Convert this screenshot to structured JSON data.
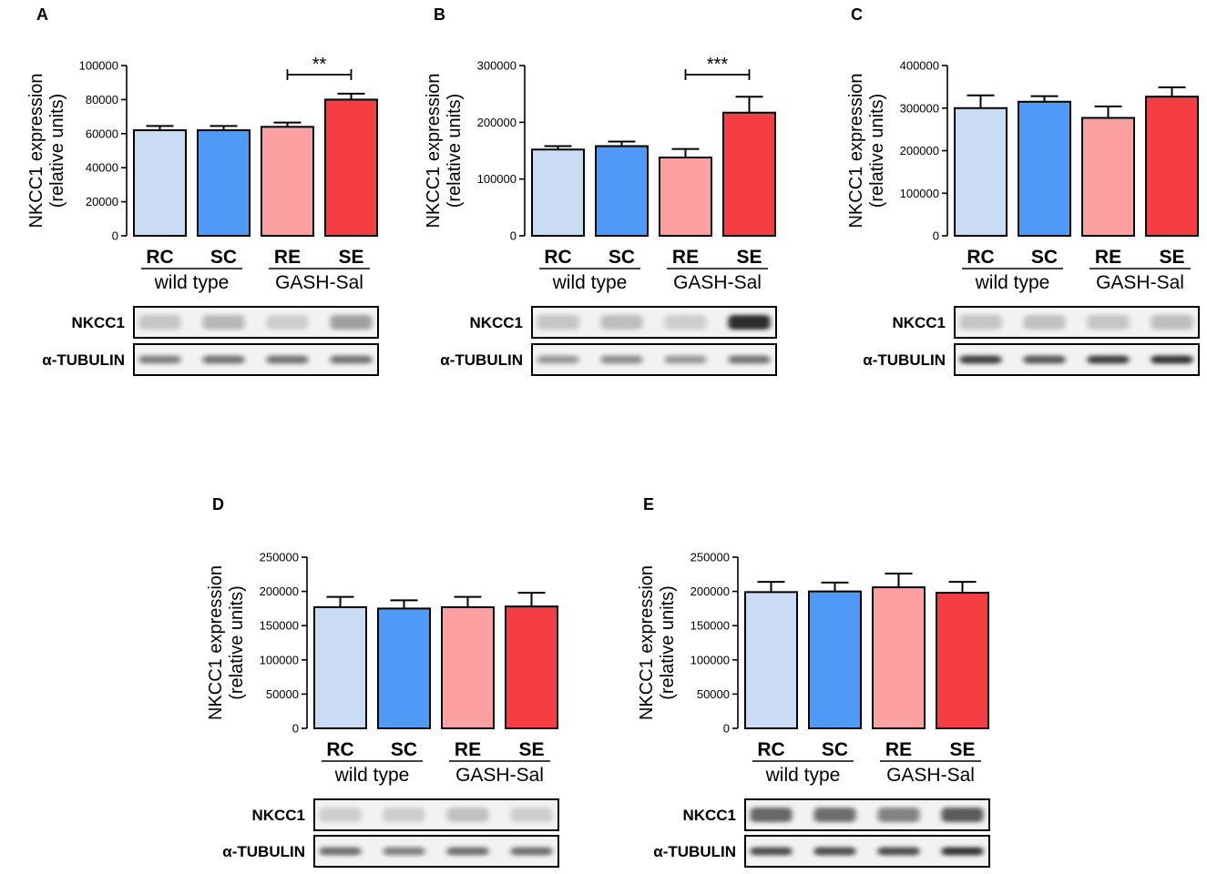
{
  "ylabel_line1": "NKCC1 expression",
  "ylabel_line2": "(relative units)",
  "categories": [
    "RC",
    "SC",
    "RE",
    "SE"
  ],
  "groups": [
    "wild type",
    "GASH-Sal"
  ],
  "bar_colors": [
    "#c9dcf4",
    "#4f9af6",
    "#fda0a2",
    "#f43e43"
  ],
  "blot_labels": [
    "NKCC1",
    "α-TUBULIN"
  ],
  "chart_data": [
    {
      "type": "bar",
      "panel": "A",
      "categories": [
        "RC",
        "SC",
        "RE",
        "SE"
      ],
      "values": [
        62000,
        62000,
        64000,
        80000
      ],
      "errors": [
        2500,
        2500,
        2500,
        3500
      ],
      "ylim": [
        0,
        100000
      ],
      "yticks": [
        0,
        20000,
        40000,
        60000,
        80000,
        100000
      ],
      "significance": {
        "from": "RE",
        "to": "SE",
        "label": "**"
      },
      "blot_intensity": {
        "nkcc1": [
          0.22,
          0.28,
          0.15,
          0.38
        ],
        "tubulin": [
          0.5,
          0.55,
          0.55,
          0.55
        ]
      }
    },
    {
      "type": "bar",
      "panel": "B",
      "categories": [
        "RC",
        "SC",
        "RE",
        "SE"
      ],
      "values": [
        152000,
        158000,
        138000,
        217000
      ],
      "errors": [
        6000,
        8000,
        15000,
        28000
      ],
      "ylim": [
        0,
        300000
      ],
      "yticks": [
        0,
        100000,
        200000,
        300000
      ],
      "significance": {
        "from": "RE",
        "to": "SE",
        "label": "***"
      },
      "blot_intensity": {
        "nkcc1": [
          0.22,
          0.25,
          0.18,
          0.9
        ],
        "tubulin": [
          0.4,
          0.45,
          0.4,
          0.55
        ]
      }
    },
    {
      "type": "bar",
      "panel": "C",
      "categories": [
        "RC",
        "SC",
        "RE",
        "SE"
      ],
      "values": [
        300000,
        315000,
        277000,
        327000
      ],
      "errors": [
        30000,
        13000,
        27000,
        22000
      ],
      "ylim": [
        0,
        400000
      ],
      "yticks": [
        0,
        100000,
        200000,
        300000,
        400000
      ],
      "significance": null,
      "blot_intensity": {
        "nkcc1": [
          0.22,
          0.2,
          0.22,
          0.25
        ],
        "tubulin": [
          0.8,
          0.7,
          0.8,
          0.85
        ]
      }
    },
    {
      "type": "bar",
      "panel": "D",
      "categories": [
        "RC",
        "SC",
        "RE",
        "SE"
      ],
      "values": [
        177000,
        175000,
        177000,
        178000
      ],
      "errors": [
        15000,
        12000,
        15000,
        20000
      ],
      "ylim": [
        0,
        250000
      ],
      "yticks": [
        0,
        50000,
        100000,
        150000,
        200000,
        250000
      ],
      "significance": null,
      "blot_intensity": {
        "nkcc1": [
          0.15,
          0.15,
          0.2,
          0.15
        ],
        "tubulin": [
          0.6,
          0.5,
          0.6,
          0.6
        ]
      }
    },
    {
      "type": "bar",
      "panel": "E",
      "categories": [
        "RC",
        "SC",
        "RE",
        "SE"
      ],
      "values": [
        199000,
        200000,
        206000,
        198000
      ],
      "errors": [
        15000,
        13000,
        20000,
        16000
      ],
      "ylim": [
        0,
        250000
      ],
      "yticks": [
        0,
        50000,
        100000,
        150000,
        200000,
        250000
      ],
      "significance": null,
      "blot_intensity": {
        "nkcc1": [
          0.65,
          0.62,
          0.5,
          0.7
        ],
        "tubulin": [
          0.75,
          0.75,
          0.75,
          0.85
        ]
      }
    }
  ]
}
